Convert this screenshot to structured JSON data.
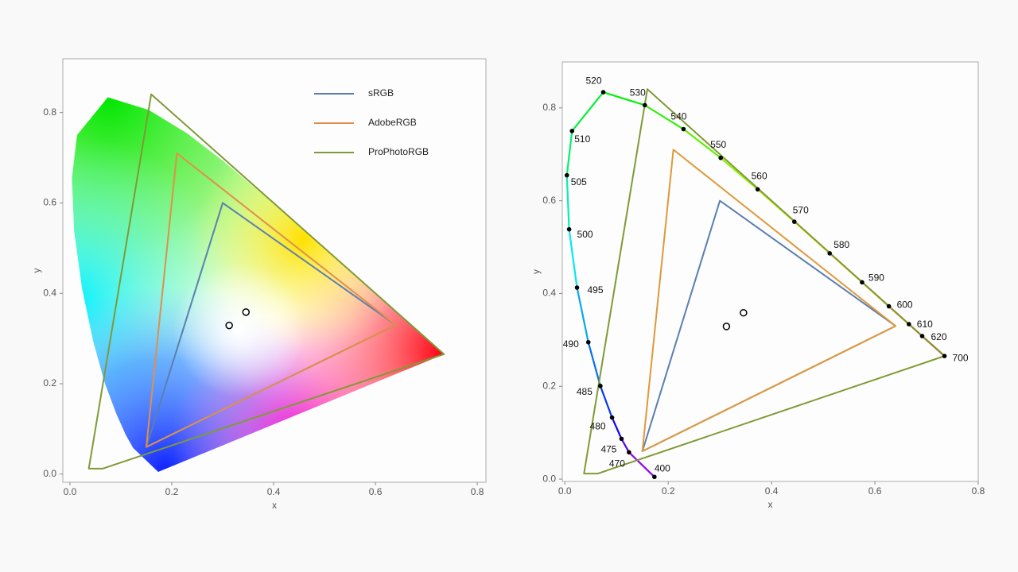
{
  "chart_data": [
    {
      "type": "chromaticity",
      "locus_style": "fill",
      "legend": "upper right",
      "xlabel": "x",
      "ylabel": "y",
      "xlim": [
        -0.014,
        0.817
      ],
      "ylim": [
        -0.018,
        0.919
      ],
      "xticks": [
        {
          "value": 0,
          "label": "0.0"
        },
        0.2,
        0.4,
        0.6,
        0.8
      ],
      "yticks": [
        {
          "value": 0,
          "label": "0.0"
        },
        0.2,
        0.4,
        0.6,
        0.8
      ],
      "locus": {
        "x": [
          0.1733,
          0.1241,
          0.1096,
          0.0913,
          0.0687,
          0.0454,
          0.0235,
          0.0082,
          0.0039,
          0.0139,
          0.0743,
          0.1547,
          0.2296,
          0.3016,
          0.3731,
          0.4441,
          0.5125,
          0.5752,
          0.627,
          0.6658,
          0.6915,
          0.7347
        ],
        "y": [
          0.0048,
          0.0578,
          0.0868,
          0.1327,
          0.2007,
          0.295,
          0.4127,
          0.5384,
          0.6548,
          0.7502,
          0.8338,
          0.8059,
          0.7543,
          0.6923,
          0.6245,
          0.5547,
          0.4866,
          0.4242,
          0.3725,
          0.334,
          0.3083,
          0.2653
        ]
      },
      "series": [
        {
          "name": "sRGB",
          "color": "#5b7fb0",
          "x": [
            0.64,
            0.3,
            0.15
          ],
          "y": [
            0.33,
            0.6,
            0.06
          ]
        },
        {
          "name": "AdobeRGB",
          "color": "#e0904a",
          "x": [
            0.64,
            0.21,
            0.15
          ],
          "y": [
            0.33,
            0.71,
            0.06
          ]
        },
        {
          "name": "ProPhotoRGB",
          "color": "#7f9a36",
          "x": [
            0.7347,
            0.1596,
            0.037,
            0.064
          ],
          "y": [
            0.2653,
            0.8404,
            0.012,
            0.012
          ]
        }
      ],
      "points": {
        "x": [
          0.3127,
          0.3457
        ],
        "y": [
          0.329,
          0.3585
        ]
      }
    },
    {
      "type": "chromaticity",
      "locus_style": "line",
      "xlabel": "x",
      "ylabel": "y",
      "xlim": [
        -0.005,
        0.8
      ],
      "ylim": [
        -0.005,
        0.899
      ],
      "xticks": [
        {
          "value": 0,
          "label": "0.0"
        },
        0.2,
        0.4,
        0.6,
        0.8
      ],
      "yticks": [
        {
          "value": 0,
          "label": "0.0"
        },
        0.2,
        0.4,
        0.6,
        0.8
      ],
      "locus": {
        "x": [
          0.1733,
          0.1241,
          0.1096,
          0.0913,
          0.0687,
          0.0454,
          0.0235,
          0.0082,
          0.0039,
          0.0139,
          0.0743,
          0.1547,
          0.2296,
          0.3016,
          0.3731,
          0.4441,
          0.5125,
          0.5752,
          0.627,
          0.6658,
          0.6915,
          0.7347
        ],
        "y": [
          0.0048,
          0.0578,
          0.0868,
          0.1327,
          0.2007,
          0.295,
          0.4127,
          0.5384,
          0.6548,
          0.7502,
          0.8338,
          0.8059,
          0.7543,
          0.6923,
          0.6245,
          0.5547,
          0.4866,
          0.4242,
          0.3725,
          0.334,
          0.3083,
          0.2653
        ],
        "labels": [
          400,
          470,
          475,
          480,
          485,
          490,
          495,
          500,
          505,
          510,
          520,
          530,
          540,
          550,
          560,
          570,
          580,
          590,
          600,
          610,
          620,
          700
        ]
      },
      "series": [
        {
          "color": "#5b7fb0",
          "x": [
            0.64,
            0.3,
            0.15
          ],
          "y": [
            0.33,
            0.6,
            0.06
          ]
        },
        {
          "color": "#e0983a",
          "x": [
            0.64,
            0.21,
            0.15
          ],
          "y": [
            0.33,
            0.71,
            0.06
          ]
        },
        {
          "color": "#7f9a36",
          "x": [
            0.7347,
            0.1596,
            0.037,
            0.064
          ],
          "y": [
            0.2653,
            0.8404,
            0.012,
            0.012
          ]
        }
      ],
      "points": {
        "x": [
          0.3127,
          0.3457
        ],
        "y": [
          0.329,
          0.3585
        ]
      }
    }
  ]
}
